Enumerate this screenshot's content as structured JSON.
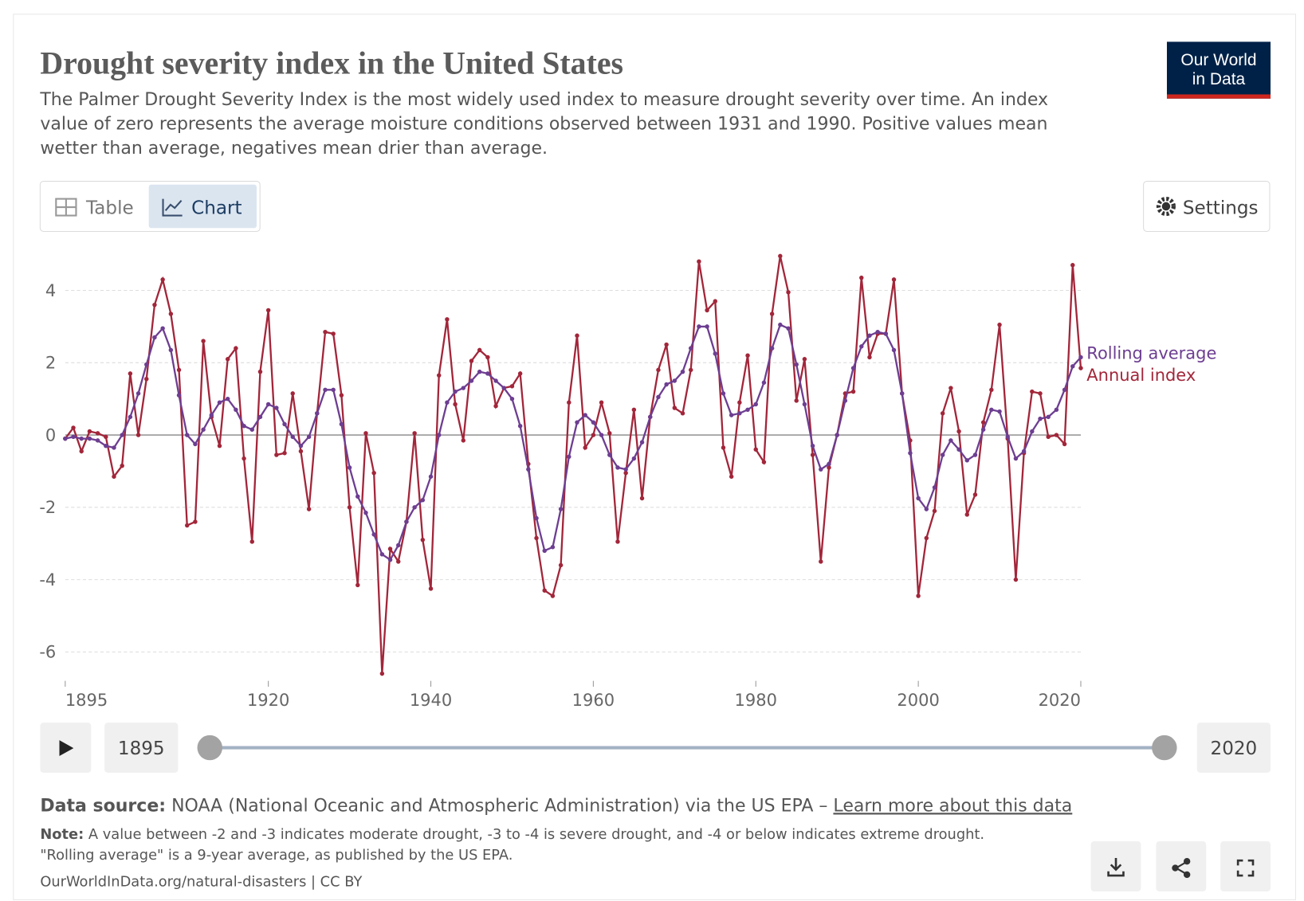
{
  "chart_data": {
    "type": "line",
    "title": "Drought severity index in the United States",
    "subtitle": [
      "The Palmer Drought Severity Index is the most widely used index to measure drought severity over time. An index",
      "value of zero represents the average moisture conditions observed between 1931 and 1990. Positive values mean",
      "wetter than average, negatives mean drier than average."
    ],
    "x": [
      1895,
      1896,
      1897,
      1898,
      1899,
      1900,
      1901,
      1902,
      1903,
      1904,
      1905,
      1906,
      1907,
      1908,
      1909,
      1910,
      1911,
      1912,
      1913,
      1914,
      1915,
      1916,
      1917,
      1918,
      1919,
      1920,
      1921,
      1922,
      1923,
      1924,
      1925,
      1926,
      1927,
      1928,
      1929,
      1930,
      1931,
      1932,
      1933,
      1934,
      1935,
      1936,
      1937,
      1938,
      1939,
      1940,
      1941,
      1942,
      1943,
      1944,
      1945,
      1946,
      1947,
      1948,
      1949,
      1950,
      1951,
      1952,
      1953,
      1954,
      1955,
      1956,
      1957,
      1958,
      1959,
      1960,
      1961,
      1962,
      1963,
      1964,
      1965,
      1966,
      1967,
      1968,
      1969,
      1970,
      1971,
      1972,
      1973,
      1974,
      1975,
      1976,
      1977,
      1978,
      1979,
      1980,
      1981,
      1982,
      1983,
      1984,
      1985,
      1986,
      1987,
      1988,
      1989,
      1990,
      1991,
      1992,
      1993,
      1994,
      1995,
      1996,
      1997,
      1998,
      1999,
      2000,
      2001,
      2002,
      2003,
      2004,
      2005,
      2006,
      2007,
      2008,
      2009,
      2010,
      2011,
      2012,
      2013,
      2014,
      2015,
      2016,
      2017,
      2018,
      2019,
      2020
    ],
    "series": [
      {
        "name": "Rolling average",
        "color": "#6d3e91",
        "values": [
          -0.1,
          -0.05,
          -0.1,
          -0.1,
          -0.15,
          -0.3,
          -0.35,
          0.0,
          0.5,
          1.15,
          1.95,
          2.7,
          2.95,
          2.35,
          1.1,
          0.0,
          -0.25,
          0.15,
          0.55,
          0.9,
          1.0,
          0.7,
          0.25,
          0.15,
          0.5,
          0.85,
          0.75,
          0.3,
          -0.05,
          -0.3,
          -0.05,
          0.6,
          1.25,
          1.25,
          0.3,
          -0.9,
          -1.7,
          -2.15,
          -2.75,
          -3.3,
          -3.45,
          -3.05,
          -2.4,
          -2.0,
          -1.8,
          -1.15,
          0.0,
          0.9,
          1.2,
          1.3,
          1.5,
          1.75,
          1.7,
          1.5,
          1.3,
          1.0,
          0.25,
          -0.95,
          -2.3,
          -3.2,
          -3.1,
          -2.05,
          -0.6,
          0.35,
          0.55,
          0.35,
          0.0,
          -0.55,
          -0.9,
          -0.95,
          -0.65,
          -0.2,
          0.5,
          1.05,
          1.4,
          1.5,
          1.75,
          2.4,
          3.0,
          3.0,
          2.25,
          1.15,
          0.55,
          0.6,
          0.7,
          0.85,
          1.45,
          2.4,
          3.05,
          2.95,
          1.95,
          0.85,
          -0.3,
          -0.95,
          -0.8,
          0.0,
          0.95,
          1.85,
          2.45,
          2.75,
          2.85,
          2.8,
          2.35,
          1.15,
          -0.5,
          -1.75,
          -2.05,
          -1.45,
          -0.55,
          -0.15,
          -0.4,
          -0.7,
          -0.55,
          0.15,
          0.7,
          0.65,
          -0.05,
          -0.65,
          -0.45,
          0.1,
          0.45,
          0.5,
          0.7,
          1.25,
          1.9,
          2.15
        ]
      },
      {
        "name": "Annual index",
        "color": "#a2263a",
        "values": [
          -0.1,
          0.2,
          -0.45,
          0.1,
          0.05,
          -0.05,
          -1.15,
          -0.85,
          1.7,
          0.0,
          1.55,
          3.6,
          4.3,
          3.35,
          1.8,
          -2.5,
          -2.4,
          2.6,
          0.5,
          -0.3,
          2.1,
          2.4,
          -0.65,
          -2.95,
          1.75,
          3.45,
          -0.55,
          -0.5,
          1.15,
          -0.45,
          -2.05,
          0.6,
          2.85,
          2.8,
          1.1,
          -2.0,
          -4.15,
          0.05,
          -1.05,
          -6.6,
          -3.15,
          -3.5,
          -2.4,
          0.05,
          -2.9,
          -4.25,
          1.65,
          3.2,
          0.85,
          -0.15,
          2.05,
          2.35,
          2.15,
          0.8,
          1.3,
          1.35,
          1.7,
          -0.8,
          -2.85,
          -4.3,
          -4.45,
          -3.6,
          0.9,
          2.75,
          -0.35,
          0.0,
          0.9,
          0.05,
          -2.95,
          -1.05,
          0.7,
          -1.75,
          0.5,
          1.8,
          2.5,
          0.75,
          0.6,
          1.8,
          4.8,
          3.45,
          3.7,
          -0.35,
          -1.15,
          0.9,
          2.2,
          -0.4,
          -0.75,
          3.35,
          4.95,
          3.95,
          0.95,
          2.1,
          -0.55,
          -3.5,
          -0.9,
          0.0,
          1.15,
          1.2,
          4.35,
          2.15,
          2.8,
          2.8,
          4.3,
          1.15,
          -0.15,
          -4.45,
          -2.85,
          -2.1,
          0.6,
          1.3,
          0.1,
          -2.2,
          -1.65,
          0.35,
          1.25,
          3.05,
          -0.1,
          -4.0,
          -0.5,
          1.2,
          1.15,
          -0.05,
          0.0,
          -0.25,
          4.7,
          1.85
        ]
      }
    ],
    "xlim": [
      1895,
      2020
    ],
    "xticks": [
      1895,
      1920,
      1940,
      1960,
      1980,
      2000,
      2020
    ],
    "ylim": [
      -6.8,
      5.1
    ],
    "yticks": [
      -6,
      -4,
      -2,
      0,
      2,
      4
    ],
    "grid": true
  },
  "ui": {
    "logo": [
      "Our World",
      "in Data"
    ],
    "tabs": [
      "Table",
      "Chart"
    ],
    "settings": "Settings",
    "timeline": {
      "start": "1895",
      "end": "2020"
    },
    "source": {
      "label": "Data source:",
      "text": "NOAA (National Oceanic and Atmospheric Administration) via the US EPA –",
      "link": "Learn more about this data"
    },
    "note": {
      "label": "Note:",
      "lines": [
        "A value between -2 and -3 indicates moderate drought, -3 to -4 is severe drought, and -4 or below indicates extreme drought.",
        "\"Rolling average\" is a 9-year average, as published by the US EPA."
      ]
    },
    "footer": "OurWorldInData.org/natural-disasters | CC BY"
  }
}
